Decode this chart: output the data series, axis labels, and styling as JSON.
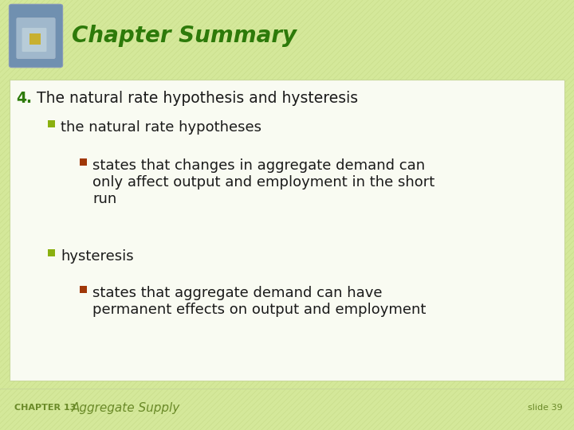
{
  "bg_color": "#d4e89a",
  "stripe_color": "#c8dc8a",
  "content_bg": "#f9fbf2",
  "content_border": "#c8d898",
  "title_text": "Chapter Summary",
  "title_color": "#2d7a0a",
  "title_fontsize": 20,
  "number_text": "4.",
  "number_color": "#2d7a0a",
  "heading_text": " The natural rate hypothesis and hysteresis",
  "text_color": "#1a1a1a",
  "heading_fontsize": 13.5,
  "bullet1_color": "#8ab010",
  "bullet1_text": "the natural rate hypotheses",
  "bullet_fontsize": 13,
  "sub_bullet_color": "#a03808",
  "sub_bullet1_line1": "states that changes in aggregate demand can",
  "sub_bullet1_line2": "only affect output and employment in the short",
  "sub_bullet1_line3": "run",
  "sub_fontsize": 13,
  "bullet2_text": "hysteresis",
  "sub_bullet2_line1": "states that aggregate demand can have",
  "sub_bullet2_line2": "permanent effects on output and employment",
  "footer_chapter": "CHAPTER 13",
  "footer_title": "Aggregate Supply",
  "footer_slide": "slide 39",
  "footer_color": "#6a8a28",
  "footer_chapter_fontsize": 8,
  "footer_title_fontsize": 11,
  "footer_slide_fontsize": 8,
  "icon_outer_color": "#7090b0",
  "icon_inner_color": "#a0b8cc",
  "icon_highlight_color": "#b8ccd8",
  "icon_center_color": "#c8b030"
}
